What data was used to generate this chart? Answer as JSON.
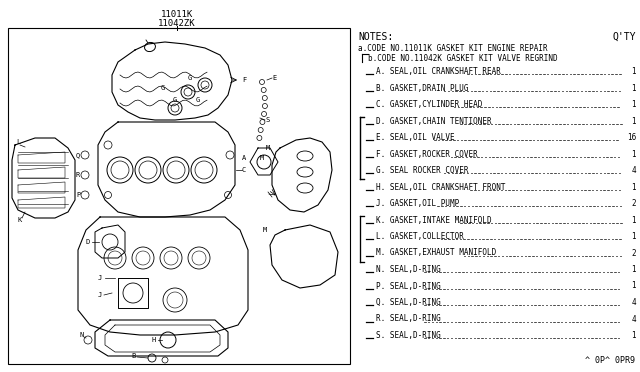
{
  "background_color": "#ffffff",
  "title_line1": "11011K",
  "title_line2": "11042ZK",
  "notes_header": "NOTES:",
  "qty_header": "Q'TY",
  "note_a": "a.CODE NO.11011K GASKET KIT ENGINE REPAIR",
  "note_b": "b.CODE NO.11042K GASKET KIT VALVE REGRIND",
  "parts": [
    {
      "label": "A",
      "desc": "SEAL,OIL CRANKSHAFT REAR",
      "qty": "1",
      "bracket": false
    },
    {
      "label": "B",
      "desc": "GASKET,DRAIN PLUG",
      "qty": "1",
      "bracket": false
    },
    {
      "label": "C",
      "desc": "GASKET,CYLINDER HEAD",
      "qty": "1",
      "bracket": false
    },
    {
      "label": "D",
      "desc": "GASKET,CHAIN TENTIONER",
      "qty": "1",
      "bracket": true
    },
    {
      "label": "E",
      "desc": "SEAL,OIL VALVE",
      "qty": "16",
      "bracket": true
    },
    {
      "label": "F",
      "desc": "GASKET,ROCKER COVER",
      "qty": "1",
      "bracket": true
    },
    {
      "label": "G",
      "desc": "SEAL ROCKER COVER",
      "qty": "4",
      "bracket": true
    },
    {
      "label": "H",
      "desc": "SEAL,OIL CRANKSHAFT FRONT",
      "qty": "1",
      "bracket": false
    },
    {
      "label": "J",
      "desc": "GASKET,OIL PUMP",
      "qty": "2",
      "bracket": false
    },
    {
      "label": "K",
      "desc": "GASKET,INTAKE MANIFOLD",
      "qty": "1",
      "bracket": true
    },
    {
      "label": "L",
      "desc": "GASKET,COLLECTOR",
      "qty": "1",
      "bracket": true
    },
    {
      "label": "M",
      "desc": "GASKET,EXHAUST MANIFOLD",
      "qty": "2",
      "bracket": true
    },
    {
      "label": "N",
      "desc": "SEAL,D-RING",
      "qty": "1",
      "bracket": false
    },
    {
      "label": "P",
      "desc": "SEAL,D-RING",
      "qty": "1",
      "bracket": false
    },
    {
      "label": "Q",
      "desc": "SEAL,D-RING",
      "qty": "4",
      "bracket": false
    },
    {
      "label": "R",
      "desc": "SEAL,D-RING",
      "qty": "4",
      "bracket": false
    },
    {
      "label": "S",
      "desc": "SEAL,D-RING",
      "qty": "1",
      "bracket": false
    }
  ],
  "footer": "^ 0P^ 0PR9",
  "text_color": "#000000",
  "line_color": "#000000",
  "fig_width": 6.4,
  "fig_height": 3.72,
  "dpi": 100
}
